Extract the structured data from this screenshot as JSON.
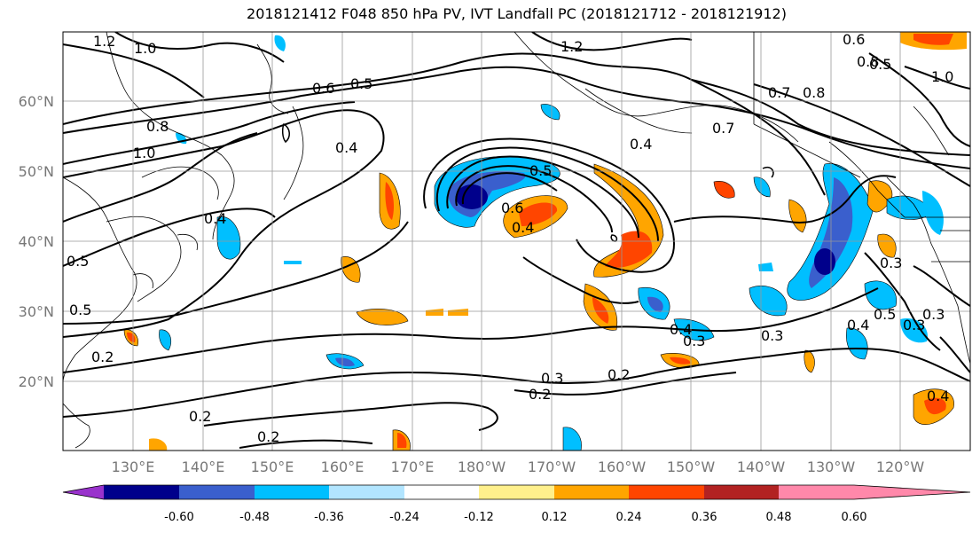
{
  "title": "2018121412 F048 850 hPa PV, IVT Landfall PC (2018121712 - 2018121912)",
  "lat_labels": [
    "60°N",
    "50°N",
    "40°N",
    "30°N",
    "20°N"
  ],
  "lon_labels": [
    "130°E",
    "140°E",
    "150°E",
    "160°E",
    "170°E",
    "180°W",
    "170°W",
    "160°W",
    "150°W",
    "140°W",
    "130°W",
    "120°W"
  ],
  "colorbar": {
    "colors": [
      "#9932CC",
      "#00008B",
      "#3A5FCD",
      "#00BFFF",
      "#B2E5FF",
      "#FFFFFF",
      "#FFF08C",
      "#FFA500",
      "#FF4500",
      "#B22222",
      "#FF88AA"
    ],
    "labels": [
      "-0.60",
      "-0.48",
      "-0.36",
      "-0.24",
      "-0.12",
      "0.12",
      "0.24",
      "0.36",
      "0.48",
      "0.60"
    ]
  },
  "contour_labels": [
    "1.2",
    "1.0",
    "1.2",
    "0.6",
    "0.5",
    "0.8",
    "0.5",
    "1.0",
    "0.8",
    "1.0",
    "0.7",
    "0.6",
    "0.4",
    "0.8",
    "0.7",
    "0.5",
    "0.4",
    "0.6",
    "0.4",
    "0.5",
    "0.4",
    "0.3",
    "0.5",
    "0.4",
    "0.2",
    "0.3",
    "0.2",
    "0.2",
    "0.3",
    "0.2",
    "0.2",
    "0.3",
    "0.4",
    "0.3",
    "0.5",
    "0.4",
    "0.3"
  ]
}
